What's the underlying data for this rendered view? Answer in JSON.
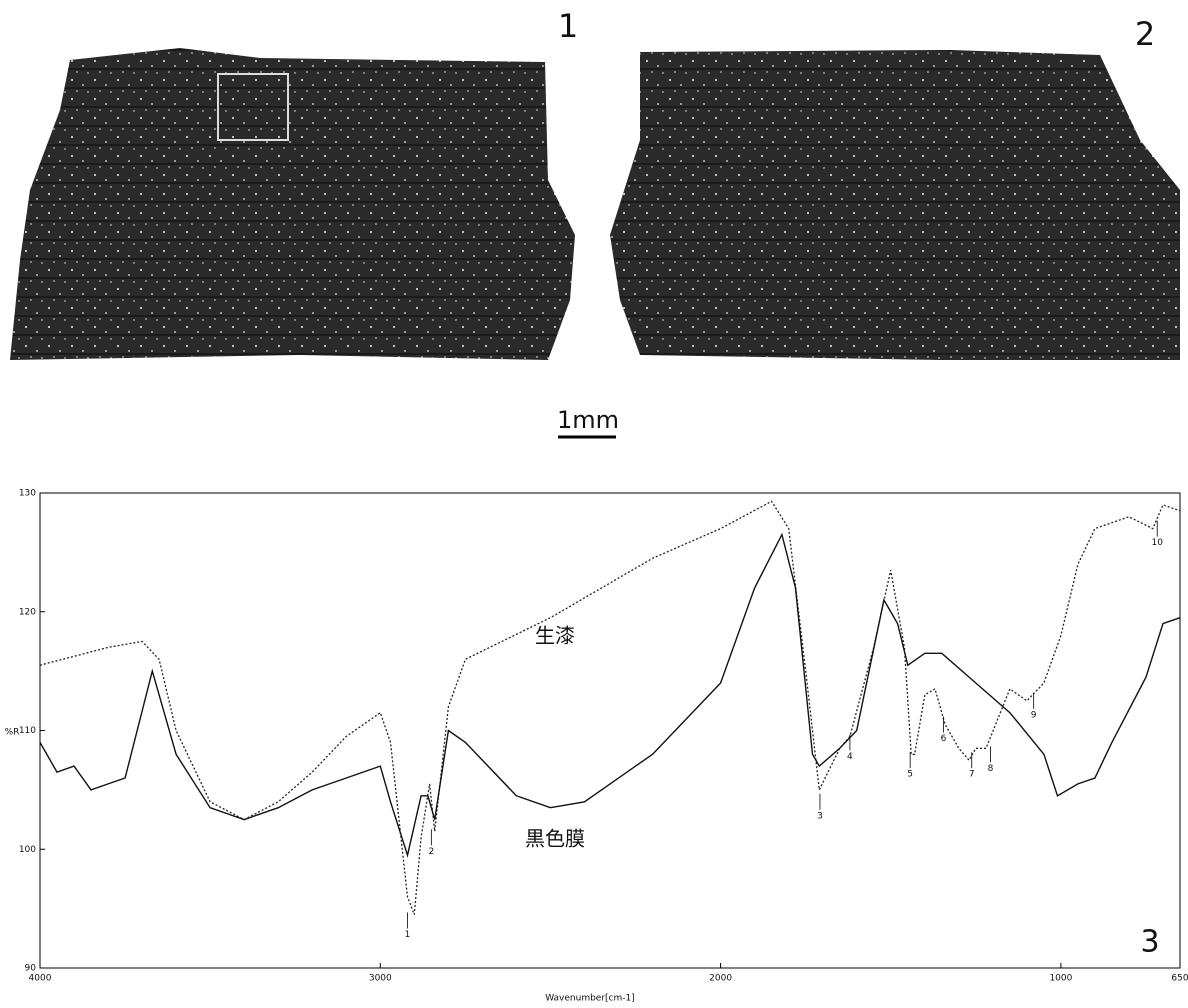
{
  "figure": {
    "panel_labels": [
      "1",
      "2",
      "3"
    ],
    "scale_bar": "1mm"
  },
  "chart_data": {
    "type": "line",
    "x_label": "Wavenumber[cm-1]",
    "y_label": "%R",
    "xlim": [
      4000,
      650
    ],
    "ylim": [
      90,
      130
    ],
    "xticks": [
      4000,
      3000,
      2000,
      1000,
      650
    ],
    "yticks": [
      90,
      100,
      110,
      120,
      130
    ],
    "series": [
      {
        "name": "生漆",
        "color": "#222222",
        "style": "dotted",
        "x": [
          4000,
          3800,
          3700,
          3650,
          3600,
          3500,
          3400,
          3300,
          3200,
          3100,
          3000,
          2970,
          2920,
          2900,
          2880,
          2855,
          2840,
          2800,
          2750,
          2500,
          2200,
          2000,
          1850,
          1800,
          1750,
          1710,
          1650,
          1620,
          1550,
          1500,
          1460,
          1440,
          1430,
          1400,
          1370,
          1340,
          1300,
          1270,
          1250,
          1220,
          1150,
          1100,
          1050,
          1000,
          950,
          900,
          800,
          730,
          700,
          650
        ],
        "values": [
          115.5,
          117,
          117.5,
          116,
          110,
          104,
          102.5,
          104,
          106.5,
          109.5,
          111.5,
          109,
          96,
          94.5,
          101,
          105.5,
          101.5,
          112,
          116,
          119.5,
          124.5,
          127,
          129.3,
          127,
          115,
          105,
          108.5,
          109.5,
          117,
          123.5,
          117,
          108,
          108,
          113,
          113.5,
          110.5,
          108.5,
          107.5,
          108.5,
          108.5,
          113.5,
          112.5,
          114,
          118,
          124,
          127,
          128,
          127,
          129,
          128.5
        ]
      },
      {
        "name": "黒色膜",
        "color": "#111111",
        "style": "solid",
        "x": [
          4000,
          3950,
          3900,
          3850,
          3800,
          3750,
          3670,
          3600,
          3500,
          3400,
          3300,
          3200,
          3100,
          3000,
          2970,
          2920,
          2880,
          2860,
          2840,
          2800,
          2750,
          2600,
          2500,
          2400,
          2200,
          2000,
          1900,
          1820,
          1780,
          1730,
          1710,
          1650,
          1600,
          1520,
          1480,
          1450,
          1400,
          1350,
          1250,
          1150,
          1050,
          1010,
          950,
          900,
          850,
          750,
          700,
          650
        ],
        "values": [
          109,
          106.5,
          107,
          105,
          105.5,
          106,
          115,
          108,
          103.5,
          102.5,
          103.5,
          105,
          106,
          107,
          104,
          99.5,
          104.5,
          104.5,
          102.5,
          110,
          109,
          104.5,
          103.5,
          104,
          108,
          114,
          122,
          126.5,
          122,
          108,
          107,
          108.5,
          110,
          121,
          119,
          115.5,
          116.5,
          116.5,
          114,
          111.5,
          108,
          104.5,
          105.5,
          106,
          109,
          114.5,
          119,
          119.5
        ]
      }
    ],
    "peak_labels": [
      {
        "label": "1",
        "x": 2920,
        "y": 94
      },
      {
        "label": "2",
        "x": 2850,
        "y": 101
      },
      {
        "label": "3",
        "x": 1708,
        "y": 104
      },
      {
        "label": "4",
        "x": 1620,
        "y": 109
      },
      {
        "label": "5",
        "x": 1443,
        "y": 107.5
      },
      {
        "label": "6",
        "x": 1345,
        "y": 110.5
      },
      {
        "label": "7",
        "x": 1262,
        "y": 107.5
      },
      {
        "label": "8",
        "x": 1207,
        "y": 108
      },
      {
        "label": "9",
        "x": 1080,
        "y": 112.5
      },
      {
        "label": "10",
        "x": 717,
        "y": 127
      }
    ]
  }
}
